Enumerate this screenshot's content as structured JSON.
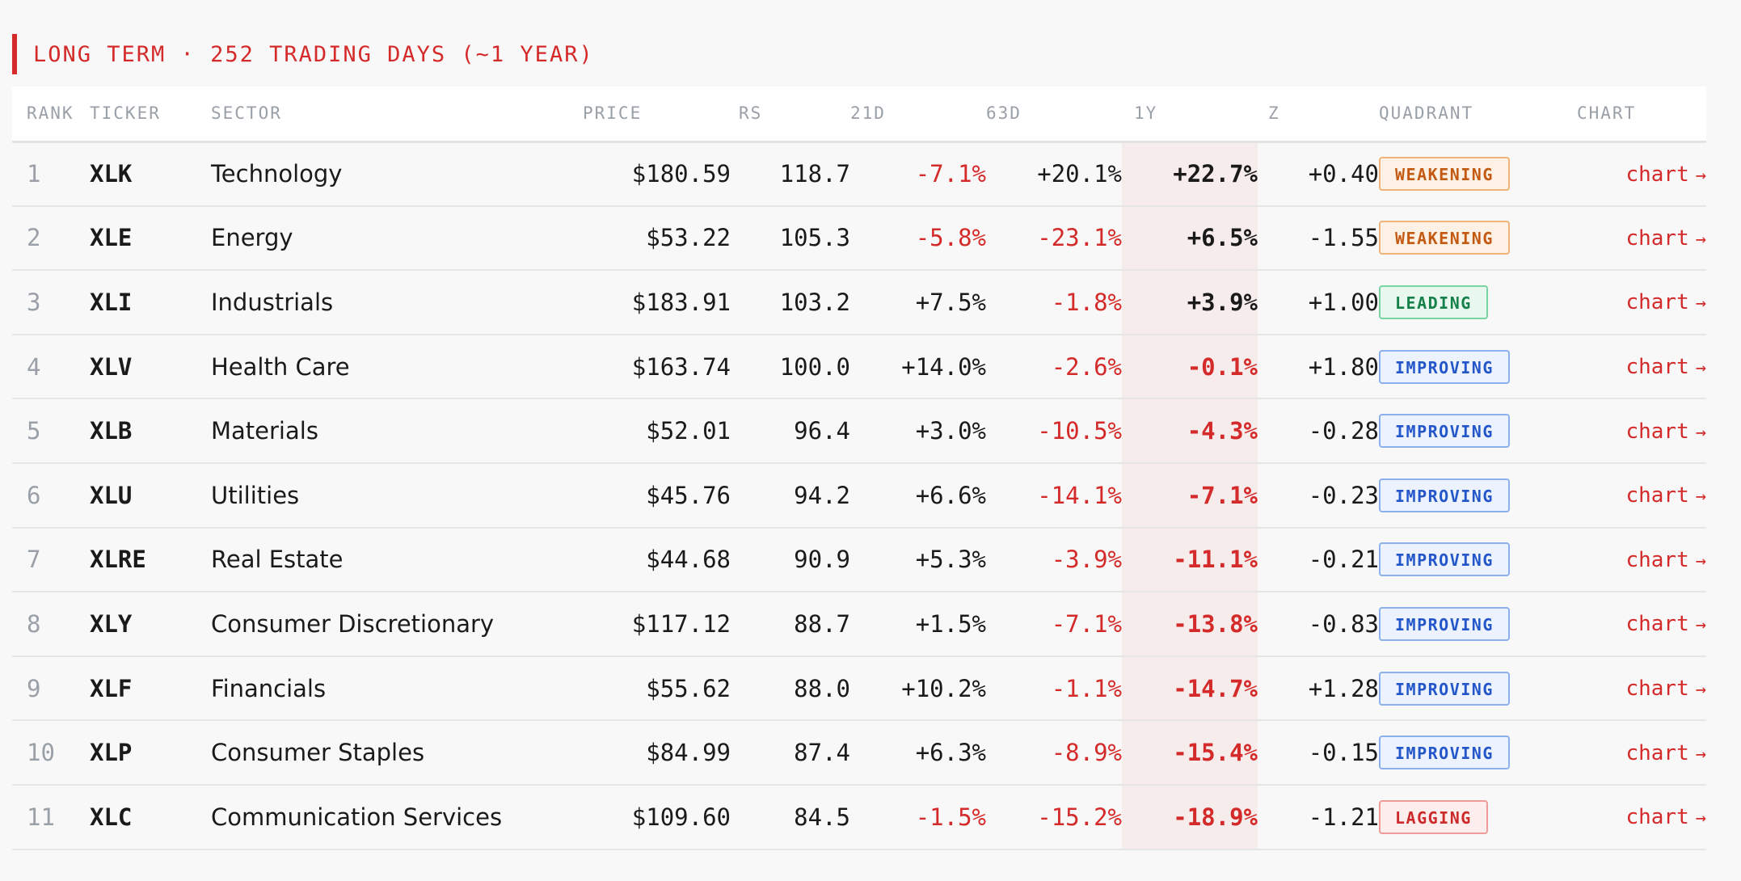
{
  "section": {
    "title": "LONG TERM · 252 TRADING DAYS (~1 YEAR)"
  },
  "columns": {
    "rank": "RANK",
    "ticker": "TICKER",
    "sector": "SECTOR",
    "price": "PRICE",
    "rs": "RS",
    "d21": "21D",
    "d63": "63D",
    "y1": "1Y",
    "z": "Z",
    "quadrant": "QUADRANT",
    "chart": "CHART"
  },
  "link_label": "chart",
  "link_arrow": "→",
  "quadrant_colors": {
    "WEAKENING": "#c45a12",
    "LEADING": "#16804a",
    "IMPROVING": "#2356c9",
    "LAGGING": "#cc2a2a"
  },
  "rows": [
    {
      "rank": "1",
      "ticker": "XLK",
      "sector": "Technology",
      "price": "$180.59",
      "rs": "118.7",
      "d21": "-7.1%",
      "d63": "+20.1%",
      "y1": "+22.7%",
      "z": "+0.40",
      "quadrant": "WEAKENING"
    },
    {
      "rank": "2",
      "ticker": "XLE",
      "sector": "Energy",
      "price": "$53.22",
      "rs": "105.3",
      "d21": "-5.8%",
      "d63": "-23.1%",
      "y1": "+6.5%",
      "z": "-1.55",
      "quadrant": "WEAKENING"
    },
    {
      "rank": "3",
      "ticker": "XLI",
      "sector": "Industrials",
      "price": "$183.91",
      "rs": "103.2",
      "d21": "+7.5%",
      "d63": "-1.8%",
      "y1": "+3.9%",
      "z": "+1.00",
      "quadrant": "LEADING"
    },
    {
      "rank": "4",
      "ticker": "XLV",
      "sector": "Health Care",
      "price": "$163.74",
      "rs": "100.0",
      "d21": "+14.0%",
      "d63": "-2.6%",
      "y1": "-0.1%",
      "z": "+1.80",
      "quadrant": "IMPROVING"
    },
    {
      "rank": "5",
      "ticker": "XLB",
      "sector": "Materials",
      "price": "$52.01",
      "rs": "96.4",
      "d21": "+3.0%",
      "d63": "-10.5%",
      "y1": "-4.3%",
      "z": "-0.28",
      "quadrant": "IMPROVING"
    },
    {
      "rank": "6",
      "ticker": "XLU",
      "sector": "Utilities",
      "price": "$45.76",
      "rs": "94.2",
      "d21": "+6.6%",
      "d63": "-14.1%",
      "y1": "-7.1%",
      "z": "-0.23",
      "quadrant": "IMPROVING"
    },
    {
      "rank": "7",
      "ticker": "XLRE",
      "sector": "Real Estate",
      "price": "$44.68",
      "rs": "90.9",
      "d21": "+5.3%",
      "d63": "-3.9%",
      "y1": "-11.1%",
      "z": "-0.21",
      "quadrant": "IMPROVING"
    },
    {
      "rank": "8",
      "ticker": "XLY",
      "sector": "Consumer Discretionary",
      "price": "$117.12",
      "rs": "88.7",
      "d21": "+1.5%",
      "d63": "-7.1%",
      "y1": "-13.8%",
      "z": "-0.83",
      "quadrant": "IMPROVING"
    },
    {
      "rank": "9",
      "ticker": "XLF",
      "sector": "Financials",
      "price": "$55.62",
      "rs": "88.0",
      "d21": "+10.2%",
      "d63": "-1.1%",
      "y1": "-14.7%",
      "z": "+1.28",
      "quadrant": "IMPROVING"
    },
    {
      "rank": "10",
      "ticker": "XLP",
      "sector": "Consumer Staples",
      "price": "$84.99",
      "rs": "87.4",
      "d21": "+6.3%",
      "d63": "-8.9%",
      "y1": "-15.4%",
      "z": "-0.15",
      "quadrant": "IMPROVING"
    },
    {
      "rank": "11",
      "ticker": "XLC",
      "sector": "Communication Services",
      "price": "$109.60",
      "rs": "84.5",
      "d21": "-1.5%",
      "d63": "-15.2%",
      "y1": "-18.9%",
      "z": "-1.21",
      "quadrant": "LAGGING"
    }
  ]
}
